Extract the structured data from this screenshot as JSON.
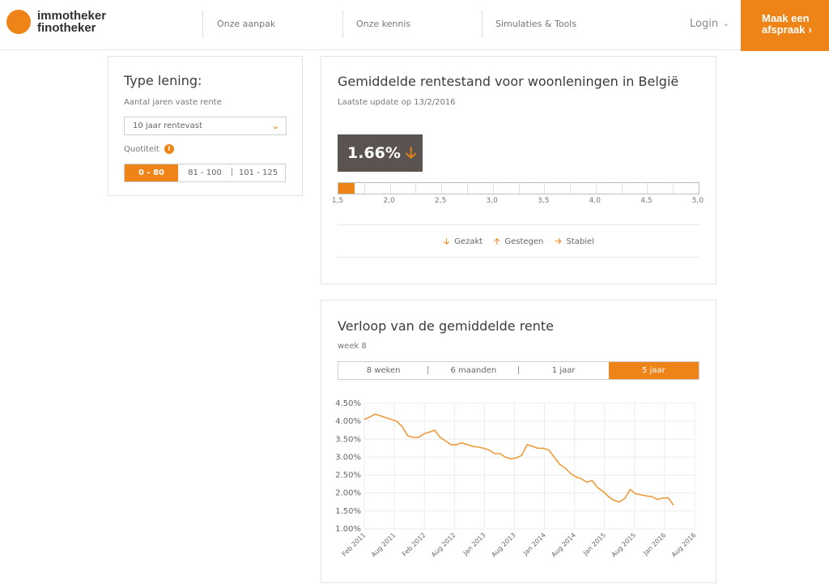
{
  "header": {
    "logo_line1": "immotheker",
    "logo_line2": "finotheker",
    "nav": [
      "Onze aanpak",
      "Onze kennis",
      "Simulaties & Tools"
    ],
    "login": "Login",
    "cta_line1": "Maak een",
    "cta_line2": "afspraak"
  },
  "loan": {
    "title": "Type lening:",
    "fixed_label": "Aantal jaren vaste rente",
    "fixed_value": "10 jaar rentevast",
    "quotity_label": "Quotiteit",
    "quotity_options": [
      "0 - 80",
      "81 - 100",
      "101 - 125"
    ]
  },
  "rate": {
    "title": "Gemiddelde rentestand voor woonleningen in België",
    "updated": "Laatste update op 13/2/2016",
    "value": "1.66%",
    "value_num": 1.66,
    "scale_min": 1.5,
    "scale_max": 5.0,
    "scale_labels": [
      "1,5",
      "2,0",
      "2,5",
      "3,0",
      "3,5",
      "4,0",
      "4,5",
      "5,0"
    ],
    "legend": [
      "Gezakt",
      "Gestegen",
      "Stabiel"
    ]
  },
  "history": {
    "title": "Verloop van de gemiddelde rente",
    "week": "week 8",
    "tabs": [
      "8 weken",
      "6 maanden",
      "1 jaar",
      "5 jaar"
    ],
    "active_tab": 3
  },
  "chart_data": {
    "type": "line",
    "ylim": [
      1.0,
      4.5
    ],
    "y_ticks": [
      "4.50%",
      "4.00%",
      "3.50%",
      "3.00%",
      "2.50%",
      "2.00%",
      "1.50%",
      "1.00%"
    ],
    "x_ticks": [
      "Feb 2011",
      "Aug 2011",
      "Feb 2012",
      "Aug 2012",
      "Jan 2013",
      "Aug 2013",
      "Jan 2014",
      "Aug 2014",
      "Jan 2015",
      "Aug 2015",
      "Jan 2016",
      "Aug 2016"
    ],
    "color": "#ee9a3a",
    "series": [
      {
        "values": [
          4.05,
          4.12,
          4.2,
          4.15,
          4.1,
          4.05,
          4.0,
          3.85,
          3.6,
          3.55,
          3.55,
          3.65,
          3.7,
          3.75,
          3.55,
          3.45,
          3.35,
          3.35,
          3.4,
          3.35,
          3.3,
          3.28,
          3.25,
          3.2,
          3.1,
          3.1,
          3.0,
          2.95,
          2.98,
          3.05,
          3.35,
          3.3,
          3.25,
          3.25,
          3.2,
          3.0,
          2.8,
          2.7,
          2.55,
          2.45,
          2.4,
          2.3,
          2.35,
          2.15,
          2.05,
          1.9,
          1.8,
          1.75,
          1.85,
          2.1,
          1.98,
          1.95,
          1.92,
          1.9,
          1.82,
          1.86,
          1.87,
          1.66
        ]
      }
    ]
  }
}
